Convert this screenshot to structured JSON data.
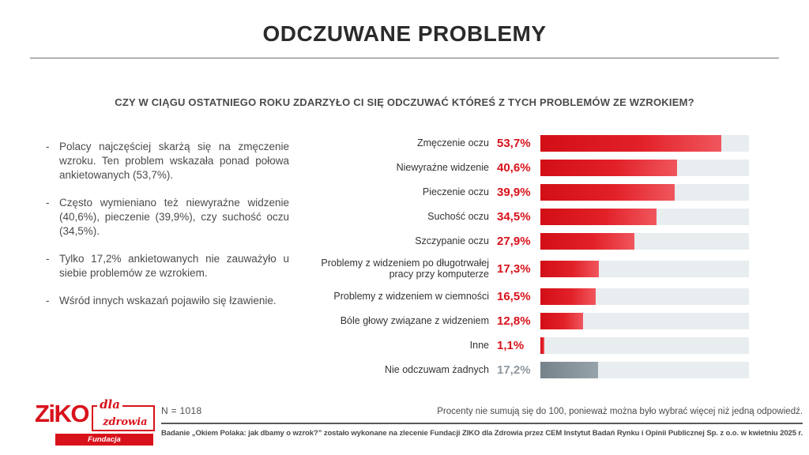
{
  "header": {
    "title": "ODCZUWANE PROBLEMY"
  },
  "question": "CZY W CIĄGU OSTATNIEGO ROKU ZDARZYŁO CI SIĘ ODCZUWAĆ KTÓREŚ Z TYCH PROBLEMÓW ZE WZROKIEM?",
  "bullets": [
    "Polacy najczęściej skarżą się na zmęczenie wzroku. Ten problem wskazała ponad połowa ankietowanych (53,7%).",
    "Często wymieniano też niewyraźne widzenie (40,6%), pieczenie (39,9%), czy suchość oczu (34,5%).",
    "Tylko 17,2% ankietowanych nie zauważyło u siebie problemów ze wzrokiem.",
    "Wśród innych wskazań pojawiło się łzawienie."
  ],
  "chart_data": {
    "type": "bar",
    "orientation": "horizontal",
    "grid": false,
    "xlim": [
      0,
      62
    ],
    "categories": [
      "Zmęczenie oczu",
      "Niewyraźne widzenie",
      "Pieczenie oczu",
      "Suchość oczu",
      "Szczypanie oczu",
      "Problemy z widzeniem po długotrwałej pracy przy komputerze",
      "Problemy z widzeniem w ciemności",
      "Bóle głowy związane z widzeniem",
      "Inne",
      "Nie odczuwam żadnych"
    ],
    "values": [
      53.7,
      40.6,
      39.9,
      34.5,
      27.9,
      17.3,
      16.5,
      12.8,
      1.1,
      17.2
    ],
    "value_labels": [
      "53,7%",
      "40,6%",
      "39,9%",
      "34,5%",
      "27,9%",
      "17,3%",
      "16,5%",
      "12,8%",
      "1,1%",
      "17,2%"
    ],
    "muted_index": 9
  },
  "footer": {
    "n_label": "N = 1018",
    "note": "Procenty nie sumują się do 100, ponieważ można było wybrać więcej niż jedną odpowiedź.",
    "source": "Badanie „Okiem Polaka: jak dbamy o wzrok?” zostało wykonane na zlecenie Fundacji ZIKO dla Zdrowia przez CEM Instytut Badań Rynku i Opinii Publicznej Sp. z o.o. w kwietniu 2025 r."
  },
  "logo": {
    "brand": "ZiKO",
    "script_word": "dla",
    "box_word": "zdrowia",
    "banner": "Fundacja"
  },
  "colors": {
    "accent_red": "#d8121b",
    "bar_red_start": "#d20f16",
    "bar_red_end": "#f0565d",
    "bar_gray_start": "#76828a",
    "bar_gray_end": "#97a3ab",
    "bar_track": "#e8edf0",
    "muted_value": "#8d979e",
    "title_text": "#2b2b2b",
    "body_text": "#4b4b4b"
  }
}
